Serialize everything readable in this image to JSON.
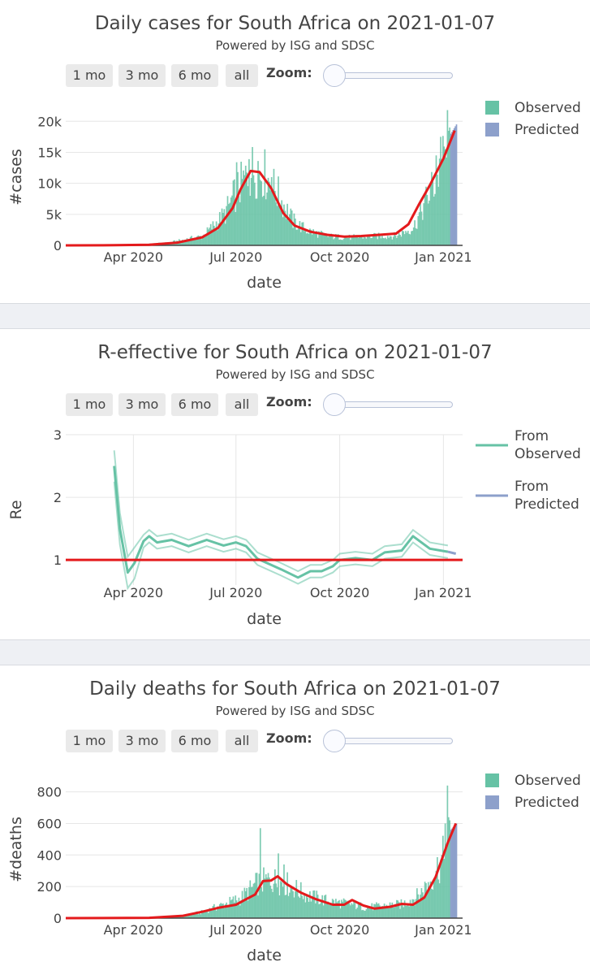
{
  "controls": {
    "buttons": [
      "1 mo",
      "3 mo",
      "6 mo",
      "all"
    ],
    "zoom_label": "Zoom:"
  },
  "colors": {
    "observed": "#66c2a5",
    "predicted": "#8da0cb",
    "fit": "#e41a1c"
  },
  "chart_data": [
    {
      "type": "bar",
      "title": "Daily cases for South Africa on 2021-01-07",
      "subtitle": "Powered by ISG and SDSC",
      "xlabel": "date",
      "ylabel": "#cases",
      "xlim": [
        "2020-02-01",
        "2021-01-18"
      ],
      "ylim": [
        0,
        22000
      ],
      "yticks": [
        0,
        5000,
        10000,
        15000,
        20000
      ],
      "ytick_labels": [
        "0",
        "5k",
        "10k",
        "15k",
        "20k"
      ],
      "xticks": [
        "2020-04-01",
        "2020-07-01",
        "2020-10-01",
        "2021-01-01"
      ],
      "xtick_labels": [
        "Apr 2020",
        "Jul 2020",
        "Oct 2020",
        "Jan 2021"
      ],
      "legend": [
        "Observed",
        "Predicted"
      ],
      "legend_position": "top-right",
      "observed_profile": [
        [
          "2020-03-05",
          0
        ],
        [
          "2020-04-01",
          100
        ],
        [
          "2020-05-01",
          400
        ],
        [
          "2020-06-01",
          1500
        ],
        [
          "2020-06-20",
          5000
        ],
        [
          "2020-07-01",
          9000
        ],
        [
          "2020-07-15",
          12500
        ],
        [
          "2020-07-25",
          12000
        ],
        [
          "2020-08-05",
          9000
        ],
        [
          "2020-08-20",
          4000
        ],
        [
          "2020-09-01",
          2500
        ],
        [
          "2020-09-20",
          1500
        ],
        [
          "2020-10-10",
          1300
        ],
        [
          "2020-10-30",
          1500
        ],
        [
          "2020-11-20",
          1600
        ],
        [
          "2020-12-05",
          3000
        ],
        [
          "2020-12-15",
          7000
        ],
        [
          "2020-12-25",
          11000
        ],
        [
          "2021-01-01",
          14000
        ],
        [
          "2021-01-07",
          18000
        ]
      ],
      "observed_spikes": [
        [
          "2020-07-01",
          13400
        ],
        [
          "2020-07-12",
          13900
        ],
        [
          "2020-07-20",
          13600
        ],
        [
          "2020-08-01",
          11000
        ],
        [
          "2020-12-25",
          14500
        ],
        [
          "2020-12-29",
          17500
        ],
        [
          "2021-01-02",
          15500
        ],
        [
          "2021-01-04",
          21800
        ],
        [
          "2021-01-06",
          19000
        ]
      ],
      "predicted_range": [
        "2021-01-07",
        "2021-01-12"
      ],
      "predicted_profile": [
        [
          "2021-01-07",
          18000
        ],
        [
          "2021-01-12",
          19500
        ]
      ],
      "fit": [
        [
          "2020-02-01",
          0
        ],
        [
          "2020-03-15",
          20
        ],
        [
          "2020-04-15",
          100
        ],
        [
          "2020-05-10",
          450
        ],
        [
          "2020-06-01",
          1300
        ],
        [
          "2020-06-15",
          2800
        ],
        [
          "2020-06-28",
          6000
        ],
        [
          "2020-07-05",
          9000
        ],
        [
          "2020-07-14",
          12000
        ],
        [
          "2020-07-22",
          11800
        ],
        [
          "2020-08-01",
          9300
        ],
        [
          "2020-08-12",
          5200
        ],
        [
          "2020-08-22",
          3200
        ],
        [
          "2020-09-05",
          2200
        ],
        [
          "2020-09-20",
          1700
        ],
        [
          "2020-10-05",
          1400
        ],
        [
          "2020-10-20",
          1500
        ],
        [
          "2020-11-05",
          1700
        ],
        [
          "2020-11-20",
          1900
        ],
        [
          "2020-12-01",
          3400
        ],
        [
          "2020-12-10",
          6500
        ],
        [
          "2020-12-20",
          9700
        ],
        [
          "2021-01-01",
          14000
        ],
        [
          "2021-01-11",
          18500
        ]
      ]
    },
    {
      "type": "line",
      "title": "R-effective for South Africa on 2021-01-07",
      "subtitle": "Powered by ISG and SDSC",
      "xlabel": "date",
      "ylabel": "Re",
      "xlim": [
        "2020-02-01",
        "2021-01-18"
      ],
      "ylim": [
        0.6,
        3.0
      ],
      "yticks": [
        1,
        2,
        3
      ],
      "ytick_labels": [
        "1",
        "2",
        "3"
      ],
      "xticks": [
        "2020-04-01",
        "2020-07-01",
        "2020-10-01",
        "2021-01-01"
      ],
      "xtick_labels": [
        "Apr 2020",
        "Jul 2020",
        "Oct 2020",
        "Jan 2021"
      ],
      "grid": true,
      "legend": [
        "From Observed",
        "From Predicted"
      ],
      "legend_position": "top-right",
      "reference_line": 1,
      "band_halfwidth": 0.1,
      "series": [
        {
          "name": "From Observed",
          "points": [
            [
              "2020-03-15",
              2.5
            ],
            [
              "2020-03-20",
              1.5
            ],
            [
              "2020-03-27",
              0.8
            ],
            [
              "2020-04-02",
              0.95
            ],
            [
              "2020-04-10",
              1.3
            ],
            [
              "2020-04-15",
              1.38
            ],
            [
              "2020-04-22",
              1.28
            ],
            [
              "2020-05-05",
              1.32
            ],
            [
              "2020-05-20",
              1.22
            ],
            [
              "2020-06-05",
              1.32
            ],
            [
              "2020-06-20",
              1.23
            ],
            [
              "2020-07-01",
              1.28
            ],
            [
              "2020-07-10",
              1.22
            ],
            [
              "2020-07-20",
              1.02
            ],
            [
              "2020-08-10",
              0.85
            ],
            [
              "2020-08-25",
              0.72
            ],
            [
              "2020-09-05",
              0.82
            ],
            [
              "2020-09-15",
              0.82
            ],
            [
              "2020-09-25",
              0.9
            ],
            [
              "2020-10-01",
              1.0
            ],
            [
              "2020-10-15",
              1.03
            ],
            [
              "2020-10-30",
              1.0
            ],
            [
              "2020-11-10",
              1.12
            ],
            [
              "2020-11-25",
              1.15
            ],
            [
              "2020-12-05",
              1.38
            ],
            [
              "2020-12-20",
              1.18
            ],
            [
              "2021-01-05",
              1.13
            ]
          ]
        },
        {
          "name": "From Predicted",
          "points": [
            [
              "2021-01-05",
              1.13
            ],
            [
              "2021-01-12",
              1.1
            ]
          ]
        }
      ]
    },
    {
      "type": "bar",
      "title": "Daily deaths for South Africa on 2021-01-07",
      "subtitle": "Powered by ISG and SDSC",
      "xlabel": "date",
      "ylabel": "#deaths",
      "xlim": [
        "2020-02-01",
        "2021-01-18"
      ],
      "ylim": [
        0,
        870
      ],
      "yticks": [
        0,
        200,
        400,
        600,
        800
      ],
      "ytick_labels": [
        "0",
        "200",
        "400",
        "600",
        "800"
      ],
      "xticks": [
        "2020-04-01",
        "2020-07-01",
        "2020-10-01",
        "2021-01-01"
      ],
      "xtick_labels": [
        "Apr 2020",
        "Jul 2020",
        "Oct 2020",
        "Jan 2021"
      ],
      "legend": [
        "Observed",
        "Predicted"
      ],
      "legend_position": "top-right",
      "observed_profile": [
        [
          "2020-03-25",
          0
        ],
        [
          "2020-04-20",
          5
        ],
        [
          "2020-05-15",
          15
        ],
        [
          "2020-06-01",
          40
        ],
        [
          "2020-06-20",
          90
        ],
        [
          "2020-07-05",
          130
        ],
        [
          "2020-07-20",
          230
        ],
        [
          "2020-08-01",
          250
        ],
        [
          "2020-08-15",
          220
        ],
        [
          "2020-09-01",
          150
        ],
        [
          "2020-09-20",
          110
        ],
        [
          "2020-10-10",
          90
        ],
        [
          "2020-10-25",
          70
        ],
        [
          "2020-11-10",
          80
        ],
        [
          "2020-11-25",
          90
        ],
        [
          "2020-12-10",
          150
        ],
        [
          "2020-12-20",
          250
        ],
        [
          "2021-01-01",
          400
        ],
        [
          "2021-01-07",
          550
        ]
      ],
      "observed_spikes": [
        [
          "2020-07-22",
          570
        ],
        [
          "2020-08-07",
          410
        ],
        [
          "2020-08-12",
          340
        ],
        [
          "2021-01-04",
          840
        ],
        [
          "2021-01-02",
          600
        ],
        [
          "2021-01-06",
          620
        ]
      ],
      "predicted_range": [
        "2021-01-07",
        "2021-01-12"
      ],
      "predicted_profile": [
        [
          "2021-01-07",
          560
        ],
        [
          "2021-01-12",
          600
        ]
      ],
      "fit": [
        [
          "2020-02-01",
          0
        ],
        [
          "2020-04-15",
          2
        ],
        [
          "2020-05-15",
          15
        ],
        [
          "2020-06-01",
          40
        ],
        [
          "2020-06-15",
          65
        ],
        [
          "2020-07-01",
          85
        ],
        [
          "2020-07-10",
          120
        ],
        [
          "2020-07-18",
          150
        ],
        [
          "2020-07-25",
          235
        ],
        [
          "2020-08-01",
          238
        ],
        [
          "2020-08-07",
          265
        ],
        [
          "2020-08-15",
          215
        ],
        [
          "2020-08-28",
          160
        ],
        [
          "2020-09-10",
          120
        ],
        [
          "2020-09-25",
          85
        ],
        [
          "2020-10-05",
          85
        ],
        [
          "2020-10-12",
          115
        ],
        [
          "2020-10-22",
          80
        ],
        [
          "2020-11-01",
          60
        ],
        [
          "2020-11-15",
          72
        ],
        [
          "2020-11-25",
          90
        ],
        [
          "2020-12-05",
          85
        ],
        [
          "2020-12-15",
          130
        ],
        [
          "2020-12-25",
          260
        ],
        [
          "2021-01-05",
          480
        ],
        [
          "2021-01-12",
          600
        ]
      ]
    }
  ]
}
